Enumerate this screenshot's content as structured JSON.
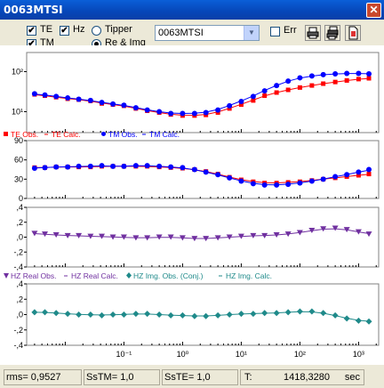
{
  "window": {
    "title": "0063MTSI",
    "close_symbol": "✕"
  },
  "toolbar": {
    "te_label": "TE",
    "hz_label": "Hz",
    "tm_label": "TM",
    "tipper_label": "Tipper",
    "reimg_label": "Re & Img",
    "station": "0063MTSI",
    "err_label": "Err"
  },
  "legends": {
    "te_obs": "TE Obs.",
    "te_calc": "TE Calc.",
    "tm_obs": "TM Obs.",
    "tm_calc": "TM Calc.",
    "hz_real_obs": "HZ Real Obs.",
    "hz_real_calc": "HZ Real Calc.",
    "hz_img_obs": "HZ Img. Obs. (Conj.)",
    "hz_img_calc": "HZ Img. Calc."
  },
  "colors": {
    "te": "#ff0000",
    "tm": "#0000ff",
    "hz_real": "#7030a0",
    "hz_img": "#1f8a8a"
  },
  "status": {
    "rms": "rms= 0,9527",
    "sstm": "SsTM= 1,0",
    "sste": "SsTE= 1,0",
    "t_label": "T:",
    "t_value": "1418,3280",
    "t_unit": "sec"
  },
  "chart_data": [
    {
      "type": "scatter",
      "title": "",
      "yscale": "log",
      "ylim": [
        3,
        300
      ],
      "yticks": [
        "10^2",
        "10^1"
      ],
      "x_log_period": [
        0.003,
        0.0045,
        0.007,
        0.011,
        0.017,
        0.027,
        0.042,
        0.065,
        0.1,
        0.16,
        0.25,
        0.4,
        0.63,
        1,
        1.6,
        2.5,
        4,
        6.3,
        10,
        16,
        25,
        40,
        63,
        100,
        160,
        250,
        400,
        630,
        1000,
        1500
      ],
      "series": [
        {
          "name": "TE Obs.",
          "values": [
            27,
            25,
            23,
            21,
            20,
            18.5,
            16,
            15,
            14,
            12,
            10.5,
            9.5,
            8.5,
            8,
            8,
            8.3,
            9.5,
            12,
            15,
            19,
            25,
            30,
            35,
            40,
            45,
            50,
            55,
            60,
            65,
            68
          ]
        },
        {
          "name": "TM Obs.",
          "values": [
            28,
            26,
            24,
            22,
            20.5,
            19,
            17,
            15.5,
            14.5,
            12.5,
            11,
            10,
            9,
            9,
            9,
            9.5,
            11,
            14,
            18,
            24,
            33,
            45,
            58,
            70,
            78,
            84,
            88,
            90,
            90,
            88
          ]
        }
      ]
    },
    {
      "type": "scatter",
      "title": "",
      "ylim": [
        0,
        90
      ],
      "yticks": [
        90,
        60,
        30,
        0
      ],
      "x_log_period": [
        0.003,
        0.0045,
        0.007,
        0.011,
        0.017,
        0.027,
        0.042,
        0.065,
        0.1,
        0.16,
        0.25,
        0.4,
        0.63,
        1,
        1.6,
        2.5,
        4,
        6.3,
        10,
        16,
        25,
        40,
        63,
        100,
        160,
        250,
        400,
        630,
        1000,
        1500
      ],
      "series": [
        {
          "name": "TE Obs.",
          "values": [
            48,
            48,
            49,
            49,
            49,
            49,
            50,
            50,
            50,
            50,
            50,
            49,
            48,
            47,
            45,
            42,
            38,
            33,
            29,
            26,
            24,
            24,
            25,
            26,
            28,
            30,
            32,
            34,
            36,
            38
          ]
        },
        {
          "name": "TM Obs.",
          "values": [
            47,
            48,
            49,
            49,
            50,
            50,
            51,
            50,
            50,
            51,
            51,
            50,
            49,
            48,
            45,
            41,
            37,
            32,
            27,
            23,
            21,
            21,
            22,
            24,
            27,
            30,
            34,
            37,
            41,
            45
          ]
        }
      ]
    },
    {
      "type": "scatter",
      "title": "",
      "ylim": [
        -0.4,
        0.4
      ],
      "yticks": [
        ",4",
        ",2",
        ",0",
        "-,2",
        "-,4"
      ],
      "x_log_period": [
        0.003,
        0.0045,
        0.007,
        0.011,
        0.017,
        0.027,
        0.042,
        0.065,
        0.1,
        0.16,
        0.25,
        0.4,
        0.63,
        1,
        1.6,
        2.5,
        4,
        6.3,
        10,
        16,
        25,
        40,
        63,
        100,
        160,
        250,
        400,
        630,
        1000,
        1500
      ],
      "series": [
        {
          "name": "HZ Real Obs.",
          "values": [
            0.05,
            0.04,
            0.03,
            0.02,
            0.02,
            0.01,
            0.01,
            0.0,
            0.0,
            -0.01,
            -0.01,
            0.0,
            0.0,
            -0.01,
            -0.02,
            -0.02,
            -0.01,
            0.0,
            0.01,
            0.02,
            0.02,
            0.03,
            0.04,
            0.06,
            0.09,
            0.11,
            0.12,
            0.1,
            0.07,
            0.04
          ]
        }
      ]
    },
    {
      "type": "scatter",
      "title": "",
      "ylim": [
        -0.4,
        0.4
      ],
      "yticks": [
        ",4",
        ",2",
        ",0",
        "-,2",
        "-,4"
      ],
      "x_log_period": [
        0.003,
        0.0045,
        0.007,
        0.011,
        0.017,
        0.027,
        0.042,
        0.065,
        0.1,
        0.16,
        0.25,
        0.4,
        0.63,
        1,
        1.6,
        2.5,
        4,
        6.3,
        10,
        16,
        25,
        40,
        63,
        100,
        160,
        250,
        400,
        630,
        1000,
        1500
      ],
      "series": [
        {
          "name": "HZ Img. Obs. (Conj.)",
          "values": [
            0.03,
            0.03,
            0.02,
            0.01,
            0.0,
            0.0,
            -0.01,
            0.0,
            0.0,
            0.01,
            0.01,
            0.0,
            -0.01,
            -0.01,
            -0.02,
            -0.02,
            -0.01,
            0.0,
            0.01,
            0.01,
            0.02,
            0.02,
            0.03,
            0.04,
            0.04,
            0.02,
            -0.01,
            -0.05,
            -0.08,
            -0.09
          ]
        }
      ]
    }
  ],
  "x_axis": {
    "ticks": [
      {
        "p": 0.1,
        "label": "10^-1"
      },
      {
        "p": 1,
        "label": "10^0"
      },
      {
        "p": 10,
        "label": "10^1"
      },
      {
        "p": 100,
        "label": "10^2"
      },
      {
        "p": 1000,
        "label": "10^3"
      }
    ]
  }
}
